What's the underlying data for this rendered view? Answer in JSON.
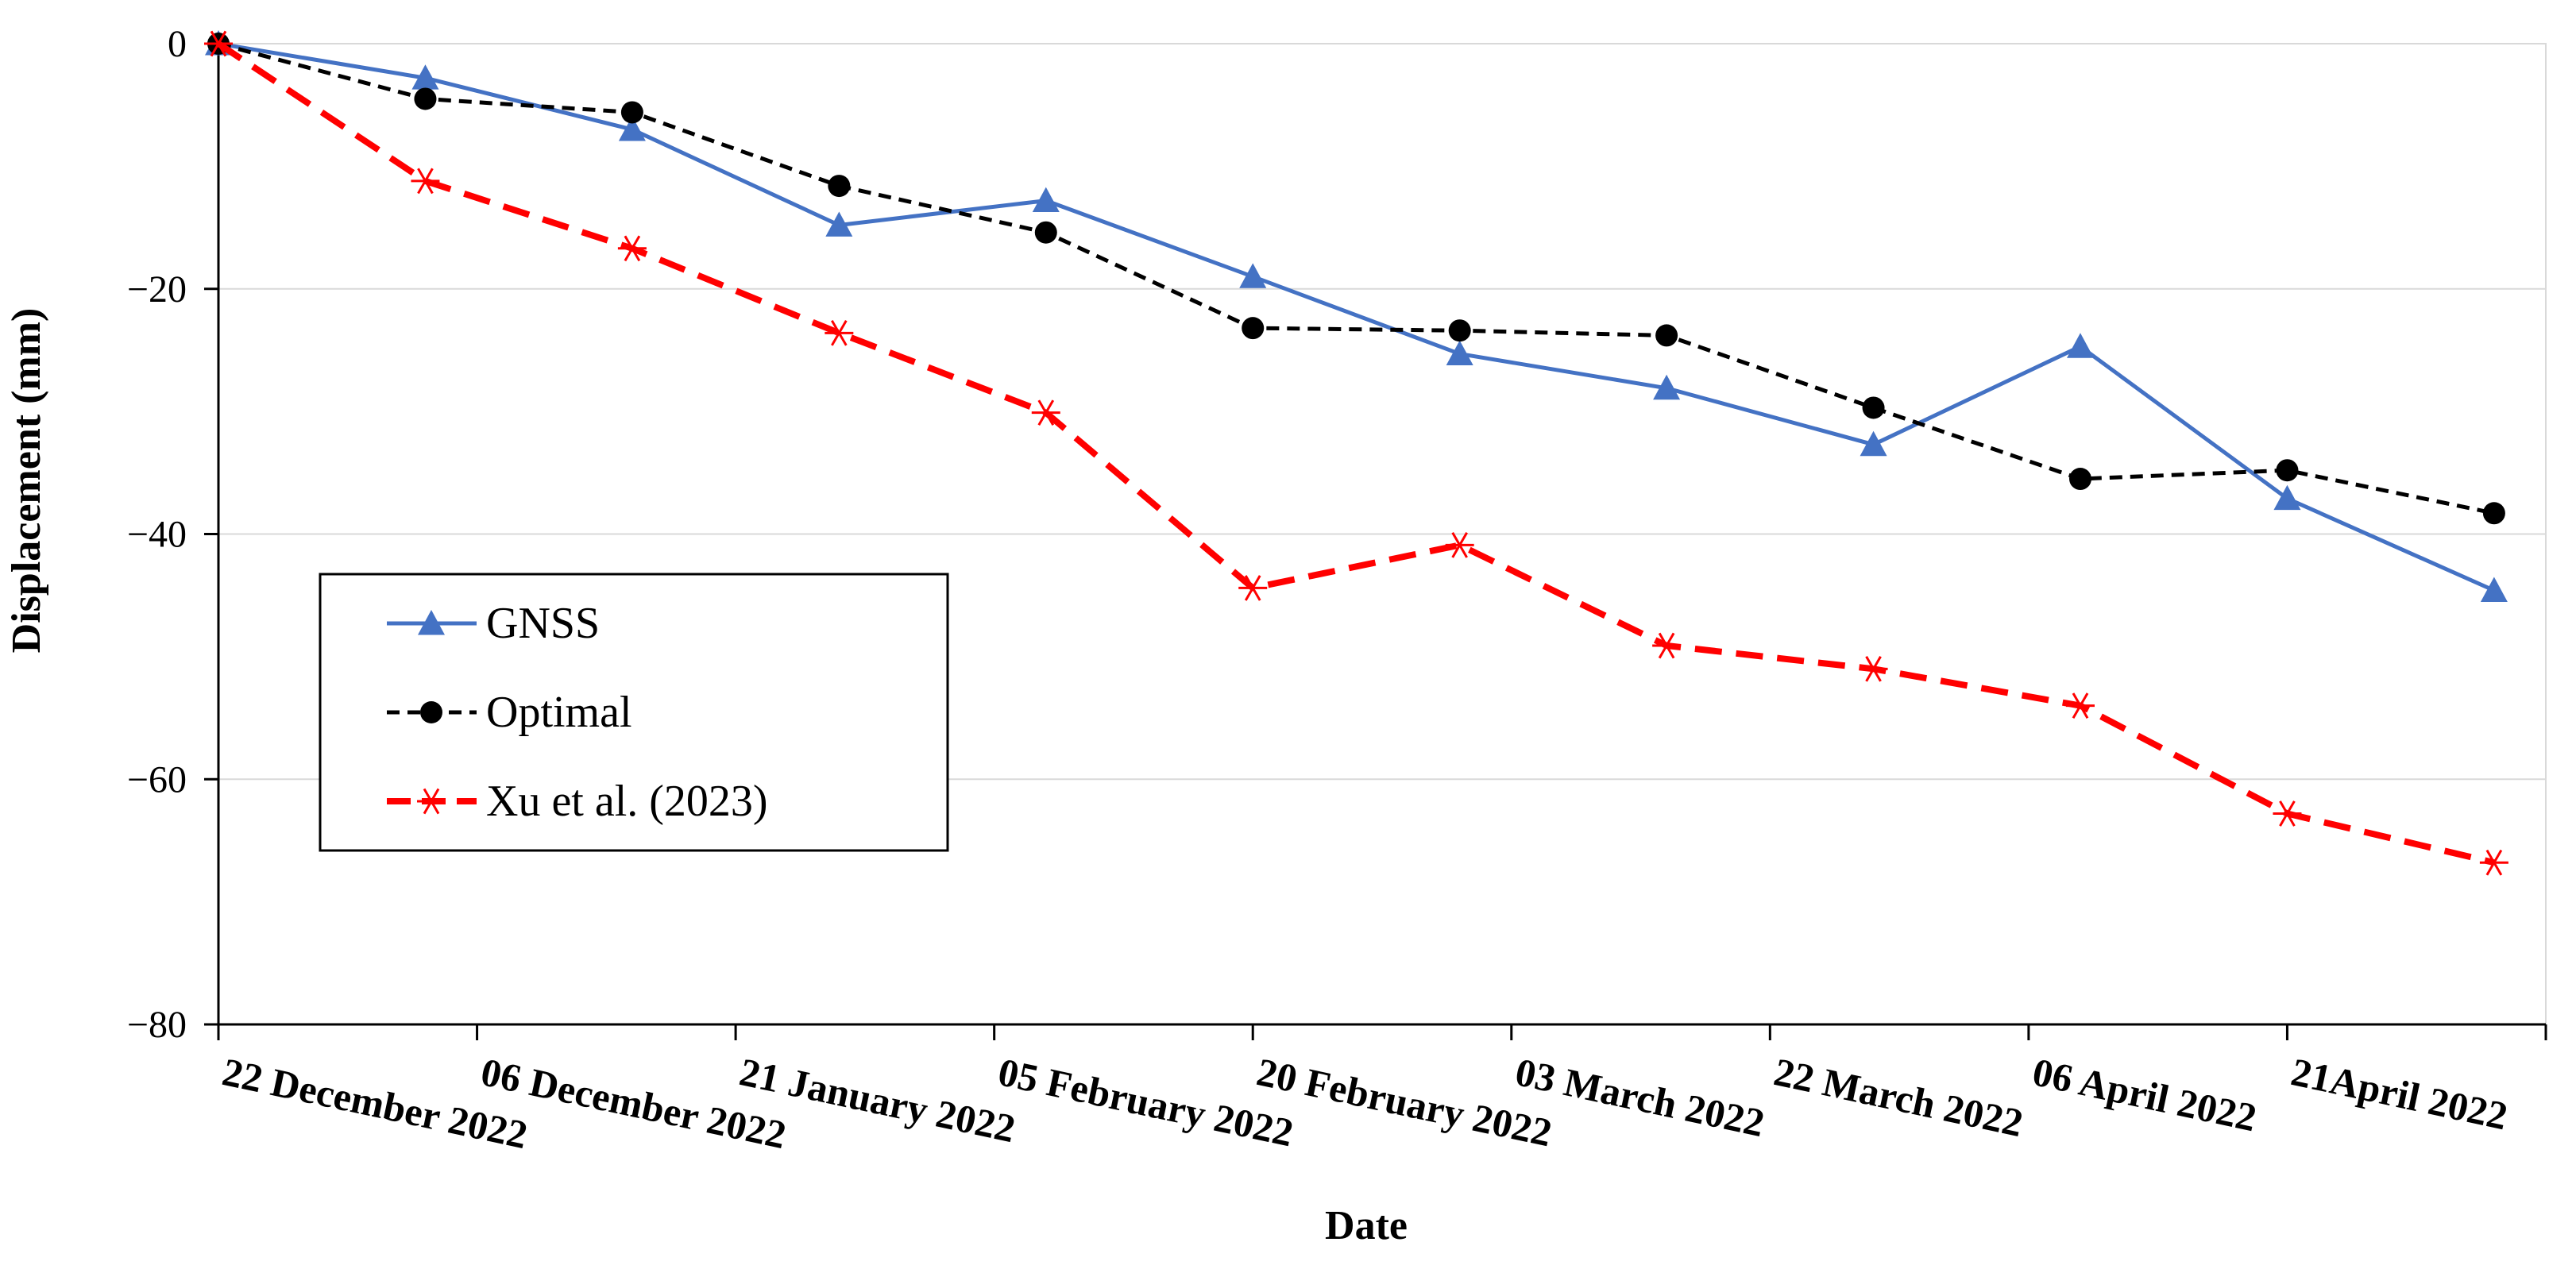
{
  "chart_data": {
    "type": "line",
    "title": "",
    "xlabel": "Date",
    "ylabel": "Displacement (mm)",
    "ylim": [
      -80,
      0
    ],
    "yticks": [
      0,
      -20,
      -40,
      -60,
      -80
    ],
    "ytick_labels": [
      "0",
      "−20",
      "−40",
      "−60",
      "−80"
    ],
    "xlim": [
      0,
      9
    ],
    "xtick_labels": [
      "22 December 2022",
      "06 December 2022",
      "21 January 2022",
      "05 February 2022",
      "20 February 2022",
      "03 March 2022",
      "22 March 2022",
      "06 April 2022",
      "21April 2022"
    ],
    "grid": true,
    "legend_position": "center-left",
    "series": [
      {
        "name": "GNSS",
        "color": "#4472C4",
        "marker": "triangle",
        "line_style": "solid",
        "x": [
          0,
          0.8,
          1.6,
          2.4,
          3.2,
          4.0,
          4.8,
          5.6,
          6.4,
          7.2,
          8.0,
          8.8
        ],
        "values": [
          0,
          -2.8,
          -7.0,
          -14.8,
          -12.8,
          -19.0,
          -25.3,
          -28.1,
          -32.7,
          -24.7,
          -37.1,
          -44.6
        ]
      },
      {
        "name": "Optimal",
        "color": "#000000",
        "marker": "circle",
        "line_style": "dashed",
        "x": [
          0,
          0.8,
          1.6,
          2.4,
          3.2,
          4.0,
          4.8,
          5.6,
          6.4,
          7.2,
          8.0,
          8.8
        ],
        "values": [
          0,
          -4.5,
          -5.6,
          -11.6,
          -15.4,
          -23.2,
          -23.4,
          -23.8,
          -29.7,
          -35.5,
          -34.8,
          -38.3
        ]
      },
      {
        "name": "Xu et al. (2023)",
        "color": "#FF0000",
        "marker": "star",
        "line_style": "dashed",
        "x": [
          0,
          0.8,
          1.6,
          2.4,
          3.2,
          4.0,
          4.8,
          5.6,
          6.4,
          7.2,
          8.0,
          8.8
        ],
        "values": [
          0,
          -11.2,
          -16.7,
          -23.6,
          -30.1,
          -44.4,
          -40.9,
          -49.1,
          -51.0,
          -54.0,
          -62.8,
          -66.8
        ]
      }
    ]
  }
}
